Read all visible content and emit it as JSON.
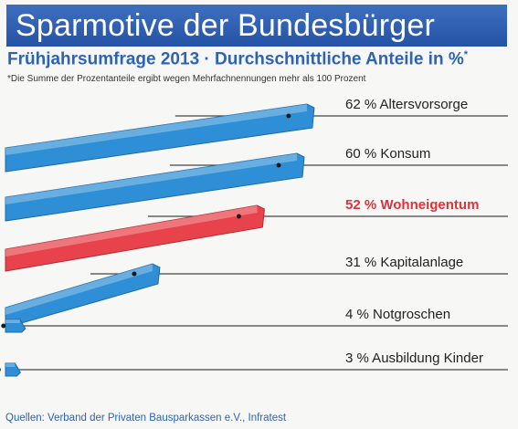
{
  "header": {
    "title": "Sparmotive der Bundesbürger",
    "subtitle": "Frühjahrsumfrage 2013 · Durchschnittliche Anteile in %",
    "subtitle_mark": "*",
    "footnote": "*Die Summe der Prozentanteile ergibt wegen Mehrfachnennungen mehr als 100 Prozent"
  },
  "source": "Quellen: Verband der Privaten Bausparkassen e.V., Infratest",
  "colors": {
    "title_bg": "#2e5fb3",
    "bar_blue": "#2f8fd6",
    "bar_blue_dark": "#1c6aaa",
    "bar_red": "#e8434c",
    "bar_red_dark": "#b52a31",
    "subtitle_text": "#2d63b5"
  },
  "chart_data": {
    "type": "bar",
    "orientation": "horizontal",
    "title": "Sparmotive der Bundesbürger",
    "subtitle": "Frühjahrsumfrage 2013 · Durchschnittliche Anteile in %",
    "unit": "%",
    "categories": [
      "Altersvorsorge",
      "Konsum",
      "Wohneigentum",
      "Kapitalanlage",
      "Notgroschen",
      "Ausbildung Kinder"
    ],
    "values": [
      62,
      60,
      52,
      31,
      4,
      3
    ],
    "highlight": "Wohneigentum",
    "labels": [
      "62 % Altersvorsorge",
      "60 % Konsum",
      "52 % Wohneigentum",
      "31 % Kapitalanlage",
      "4 % Notgroschen",
      "3 % Ausbildung Kinder"
    ]
  }
}
